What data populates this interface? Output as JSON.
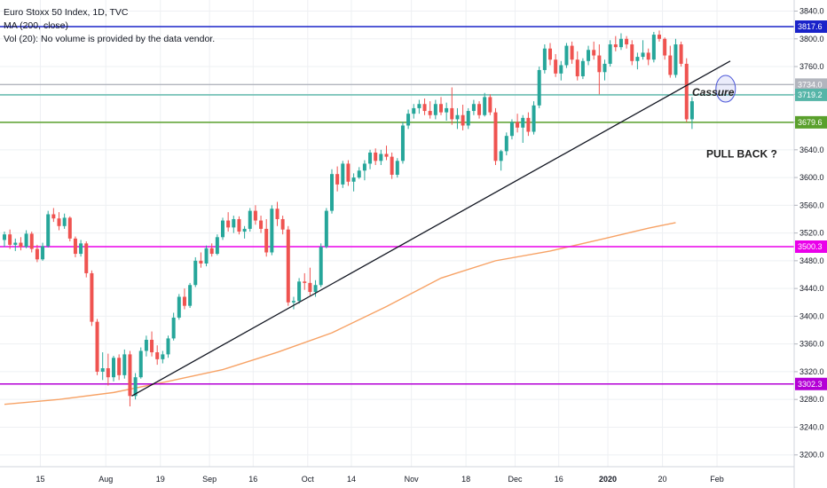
{
  "legend": {
    "title": "Euro Stoxx 50 Index, 1D, TVC",
    "ma": "MA (200, close)",
    "vol": "Vol (20): No volume is provided by the data vendor."
  },
  "chart_data": {
    "type": "candlestick",
    "y_ticks": [
      3200,
      3240,
      3280,
      3320,
      3360,
      3400,
      3440,
      3480,
      3520,
      3560,
      3600,
      3640,
      3680,
      3720,
      3760,
      3800,
      3840
    ],
    "y_tick_labels": [
      "3200.0",
      "3240.0",
      "3280.0",
      "3320.0",
      "3360.0",
      "3400.0",
      "3440.0",
      "3480.0",
      "3520.0",
      "3560.0",
      "3600.0",
      "3640.0",
      "3680.0",
      "3720.0",
      "3760.0",
      "3800.0",
      "3840.0"
    ],
    "ylim": [
      3183,
      3856
    ],
    "x_ticks": [
      {
        "label": "15",
        "bar": 3
      },
      {
        "label": "Aug",
        "bar": 15
      },
      {
        "label": "19",
        "bar": 25
      },
      {
        "label": "Sep",
        "bar": 34
      },
      {
        "label": "16",
        "bar": 42
      },
      {
        "label": "Oct",
        "bar": 52
      },
      {
        "label": "14",
        "bar": 60
      },
      {
        "label": "Nov",
        "bar": 71
      },
      {
        "label": "18",
        "bar": 81
      },
      {
        "label": "Dec",
        "bar": 90
      },
      {
        "label": "16",
        "bar": 98
      },
      {
        "label": "2020",
        "bar": 107
      },
      {
        "label": "20",
        "bar": 117
      },
      {
        "label": "Feb",
        "bar": 127
      }
    ],
    "bar_count": 133,
    "levels": [
      {
        "value": 3817.6,
        "label": "3817.6",
        "color": "#1a23c9"
      },
      {
        "value": 3734.0,
        "label": "3734.0",
        "color": "#b2b5be"
      },
      {
        "value": 3719.2,
        "label": "3719.2",
        "color": "#56b5a8"
      },
      {
        "value": 3679.6,
        "label": "3679.6",
        "color": "#5aa02c"
      },
      {
        "value": 3500.3,
        "label": "3500.3",
        "color": "#ea00ea"
      },
      {
        "value": 3302.3,
        "label": "3302.3",
        "color": "#b400d6"
      }
    ],
    "trendline": {
      "from": [
        23,
        3285
      ],
      "to": [
        133,
        3768
      ],
      "color": "#131722"
    },
    "ma200": {
      "color": "#f7a265",
      "points": [
        [
          0,
          3273
        ],
        [
          10,
          3280
        ],
        [
          20,
          3290
        ],
        [
          30,
          3306
        ],
        [
          40,
          3323
        ],
        [
          50,
          3348
        ],
        [
          60,
          3376
        ],
        [
          70,
          3414
        ],
        [
          80,
          3455
        ],
        [
          90,
          3480
        ],
        [
          100,
          3494
        ],
        [
          110,
          3512
        ],
        [
          118,
          3527
        ],
        [
          123,
          3535
        ]
      ]
    },
    "candles": {
      "up_color": "#26a69a",
      "down_color": "#ef5350",
      "start_bar": 0,
      "ohlc": [
        [
          3510,
          3522,
          3500,
          3518
        ],
        [
          3518,
          3525,
          3497,
          3503
        ],
        [
          3503,
          3512,
          3494,
          3506
        ],
        [
          3506,
          3514,
          3495,
          3500
        ],
        [
          3500,
          3524,
          3498,
          3519
        ],
        [
          3519,
          3522,
          3492,
          3497
        ],
        [
          3497,
          3503,
          3478,
          3482
        ],
        [
          3482,
          3506,
          3480,
          3501
        ],
        [
          3501,
          3552,
          3499,
          3547
        ],
        [
          3547,
          3556,
          3536,
          3541
        ],
        [
          3541,
          3550,
          3524,
          3530
        ],
        [
          3530,
          3548,
          3526,
          3542
        ],
        [
          3542,
          3544,
          3508,
          3512
        ],
        [
          3512,
          3515,
          3485,
          3490
        ],
        [
          3490,
          3510,
          3486,
          3505
        ],
        [
          3505,
          3508,
          3456,
          3462
        ],
        [
          3462,
          3466,
          3386,
          3392
        ],
        [
          3392,
          3396,
          3315,
          3320
        ],
        [
          3320,
          3348,
          3308,
          3325
        ],
        [
          3325,
          3346,
          3300,
          3312
        ],
        [
          3312,
          3343,
          3306,
          3340
        ],
        [
          3340,
          3345,
          3308,
          3315
        ],
        [
          3315,
          3352,
          3310,
          3345
        ],
        [
          3345,
          3350,
          3270,
          3285
        ],
        [
          3285,
          3318,
          3280,
          3312
        ],
        [
          3312,
          3355,
          3310,
          3350
        ],
        [
          3350,
          3372,
          3342,
          3366
        ],
        [
          3366,
          3378,
          3342,
          3348
        ],
        [
          3348,
          3358,
          3330,
          3338
        ],
        [
          3338,
          3350,
          3332,
          3345
        ],
        [
          3345,
          3372,
          3340,
          3368
        ],
        [
          3368,
          3405,
          3365,
          3398
        ],
        [
          3398,
          3432,
          3395,
          3428
        ],
        [
          3428,
          3440,
          3410,
          3415
        ],
        [
          3415,
          3448,
          3412,
          3445
        ],
        [
          3445,
          3485,
          3442,
          3480
        ],
        [
          3480,
          3492,
          3470,
          3476
        ],
        [
          3476,
          3502,
          3472,
          3498
        ],
        [
          3498,
          3505,
          3486,
          3490
        ],
        [
          3490,
          3518,
          3488,
          3514
        ],
        [
          3514,
          3542,
          3510,
          3538
        ],
        [
          3538,
          3550,
          3522,
          3528
        ],
        [
          3528,
          3545,
          3520,
          3540
        ],
        [
          3540,
          3544,
          3518,
          3522
        ],
        [
          3522,
          3530,
          3512,
          3526
        ],
        [
          3526,
          3556,
          3522,
          3552
        ],
        [
          3552,
          3560,
          3532,
          3538
        ],
        [
          3538,
          3545,
          3520,
          3526
        ],
        [
          3526,
          3540,
          3486,
          3492
        ],
        [
          3492,
          3560,
          3488,
          3555
        ],
        [
          3555,
          3565,
          3530,
          3540
        ],
        [
          3540,
          3545,
          3518,
          3525
        ],
        [
          3525,
          3530,
          3415,
          3420
        ],
        [
          3420,
          3428,
          3410,
          3422
        ],
        [
          3422,
          3455,
          3418,
          3450
        ],
        [
          3450,
          3462,
          3438,
          3448
        ],
        [
          3448,
          3470,
          3430,
          3435
        ],
        [
          3435,
          3452,
          3428,
          3445
        ],
        [
          3445,
          3505,
          3442,
          3500
        ],
        [
          3500,
          3556,
          3498,
          3552
        ],
        [
          3552,
          3612,
          3548,
          3605
        ],
        [
          3605,
          3616,
          3580,
          3590
        ],
        [
          3590,
          3624,
          3585,
          3620
        ],
        [
          3620,
          3625,
          3588,
          3594
        ],
        [
          3594,
          3606,
          3580,
          3600
        ],
        [
          3600,
          3615,
          3598,
          3610
        ],
        [
          3610,
          3625,
          3596,
          3620
        ],
        [
          3620,
          3640,
          3612,
          3636
        ],
        [
          3636,
          3642,
          3618,
          3624
        ],
        [
          3624,
          3640,
          3618,
          3634
        ],
        [
          3634,
          3646,
          3625,
          3630
        ],
        [
          3630,
          3636,
          3598,
          3604
        ],
        [
          3604,
          3628,
          3600,
          3624
        ],
        [
          3624,
          3680,
          3620,
          3675
        ],
        [
          3675,
          3698,
          3670,
          3692
        ],
        [
          3692,
          3706,
          3685,
          3700
        ],
        [
          3700,
          3712,
          3692,
          3706
        ],
        [
          3706,
          3714,
          3690,
          3696
        ],
        [
          3696,
          3710,
          3685,
          3690
        ],
        [
          3690,
          3712,
          3684,
          3706
        ],
        [
          3706,
          3716,
          3690,
          3694
        ],
        [
          3694,
          3708,
          3682,
          3700
        ],
        [
          3700,
          3730,
          3676,
          3684
        ],
        [
          3684,
          3700,
          3670,
          3690
        ],
        [
          3690,
          3705,
          3668,
          3675
        ],
        [
          3675,
          3700,
          3670,
          3696
        ],
        [
          3696,
          3712,
          3690,
          3706
        ],
        [
          3706,
          3710,
          3685,
          3690
        ],
        [
          3690,
          3722,
          3688,
          3716
        ],
        [
          3716,
          3720,
          3690,
          3694
        ],
        [
          3694,
          3700,
          3618,
          3624
        ],
        [
          3624,
          3640,
          3610,
          3638
        ],
        [
          3638,
          3665,
          3632,
          3660
        ],
        [
          3660,
          3684,
          3655,
          3680
        ],
        [
          3680,
          3692,
          3665,
          3672
        ],
        [
          3672,
          3690,
          3650,
          3686
        ],
        [
          3686,
          3694,
          3660,
          3666
        ],
        [
          3666,
          3710,
          3662,
          3704
        ],
        [
          3704,
          3760,
          3700,
          3755
        ],
        [
          3755,
          3792,
          3750,
          3786
        ],
        [
          3786,
          3794,
          3762,
          3770
        ],
        [
          3770,
          3778,
          3745,
          3750
        ],
        [
          3750,
          3768,
          3740,
          3762
        ],
        [
          3762,
          3794,
          3758,
          3790
        ],
        [
          3790,
          3796,
          3764,
          3770
        ],
        [
          3770,
          3782,
          3740,
          3746
        ],
        [
          3746,
          3772,
          3742,
          3768
        ],
        [
          3768,
          3790,
          3762,
          3784
        ],
        [
          3784,
          3796,
          3770,
          3776
        ],
        [
          3776,
          3792,
          3720,
          3752
        ],
        [
          3752,
          3770,
          3740,
          3764
        ],
        [
          3764,
          3798,
          3760,
          3792
        ],
        [
          3792,
          3804,
          3782,
          3788
        ],
        [
          3788,
          3808,
          3784,
          3800
        ],
        [
          3800,
          3804,
          3786,
          3792
        ],
        [
          3792,
          3798,
          3762,
          3768
        ],
        [
          3768,
          3780,
          3756,
          3774
        ],
        [
          3774,
          3798,
          3770,
          3780
        ],
        [
          3780,
          3786,
          3762,
          3770
        ],
        [
          3770,
          3810,
          3766,
          3806
        ],
        [
          3806,
          3812,
          3796,
          3800
        ],
        [
          3800,
          3802,
          3770,
          3776
        ],
        [
          3776,
          3790,
          3744,
          3748
        ],
        [
          3748,
          3800,
          3744,
          3792
        ],
        [
          3792,
          3796,
          3760,
          3764
        ],
        [
          3764,
          3772,
          3680,
          3684
        ],
        [
          3684,
          3716,
          3670,
          3710
        ]
      ]
    },
    "annotations": [
      {
        "text": "Cassure",
        "bar": 113,
        "value": 3724
      },
      {
        "text": "PULL BACK ?",
        "bar": 114,
        "value": 3634
      }
    ],
    "marker_circle": {
      "bar": 132,
      "value": 3728
    }
  }
}
